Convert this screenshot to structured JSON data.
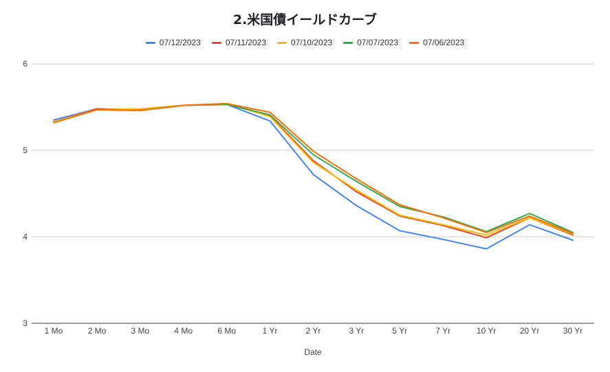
{
  "chart_data": {
    "type": "line",
    "title": "2.米国債イールドカーブ",
    "xlabel": "Date",
    "ylabel": "",
    "ylim": [
      3,
      6
    ],
    "yticks": [
      3,
      4,
      5,
      6
    ],
    "grid": true,
    "legend_position": "top",
    "categories": [
      "1 Mo",
      "2 Mo",
      "3 Mo",
      "4 Mo",
      "6 Mo",
      "1 Yr",
      "2 Yr",
      "3 Yr",
      "5 Yr",
      "7 Yr",
      "10 Yr",
      "20 Yr",
      "30 Yr"
    ],
    "series": [
      {
        "name": "07/12/2023",
        "color": "#4285f4",
        "values": [
          5.35,
          5.48,
          5.46,
          5.52,
          5.53,
          5.34,
          4.72,
          4.36,
          4.07,
          3.97,
          3.86,
          4.14,
          3.96
        ]
      },
      {
        "name": "07/11/2023",
        "color": "#ea4335",
        "values": [
          5.33,
          5.48,
          5.47,
          5.52,
          5.54,
          5.4,
          4.88,
          4.52,
          4.24,
          4.13,
          3.99,
          4.22,
          4.02
        ]
      },
      {
        "name": "07/10/2023",
        "color": "#fbbc04",
        "values": [
          5.33,
          5.47,
          5.48,
          5.52,
          5.54,
          5.39,
          4.86,
          4.54,
          4.25,
          4.14,
          4.02,
          4.22,
          4.03
        ]
      },
      {
        "name": "07/07/2023",
        "color": "#34a853",
        "values": [
          5.32,
          5.47,
          5.46,
          5.52,
          5.53,
          5.41,
          4.95,
          4.64,
          4.35,
          4.23,
          4.06,
          4.27,
          4.05
        ]
      },
      {
        "name": "07/06/2023",
        "color": "#ff6d01",
        "values": [
          5.32,
          5.47,
          5.46,
          5.52,
          5.54,
          5.44,
          4.99,
          4.67,
          4.37,
          4.22,
          4.05,
          4.24,
          4.04
        ]
      }
    ]
  }
}
